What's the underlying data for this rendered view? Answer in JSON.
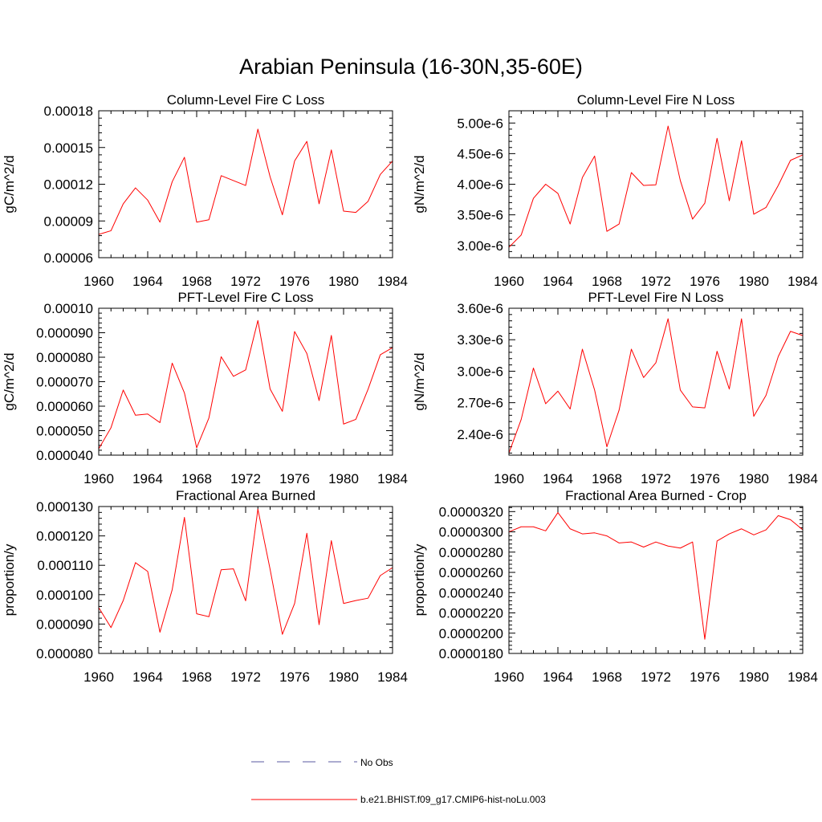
{
  "title": "Arabian Peninsula (16-30N,35-60E)",
  "legend": [
    {
      "label": "No Obs",
      "color": "#5a5aa0",
      "style": "dashed"
    },
    {
      "label": "b.e21.BHIST.f09_g17.CMIP6-hist-noLu.003",
      "color": "#ff0000",
      "style": "solid"
    }
  ],
  "chart_data": [
    {
      "type": "line",
      "title": "Column-Level Fire C Loss",
      "ylabel": "gC/m^2/d",
      "xlim": [
        1960,
        1984
      ],
      "xticks": [
        "1960",
        "1964",
        "1968",
        "1972",
        "1976",
        "1980",
        "1984"
      ],
      "ylim": [
        6e-05,
        0.00018
      ],
      "yticks": [
        "0.00006",
        "0.00009",
        "0.00012",
        "0.00015",
        "0.00018"
      ],
      "x": [
        1960,
        1961,
        1962,
        1963,
        1964,
        1965,
        1966,
        1967,
        1968,
        1969,
        1970,
        1971,
        1972,
        1973,
        1974,
        1975,
        1976,
        1977,
        1978,
        1979,
        1980,
        1981,
        1982,
        1983,
        1984
      ],
      "series": [
        {
          "color": "#ff0000",
          "values": [
            7.9e-05,
            8.2e-05,
            0.000104,
            0.000117,
            0.000107,
            8.9e-05,
            0.000122,
            0.000142,
            8.9e-05,
            9.1e-05,
            0.000127,
            0.000123,
            0.000119,
            0.000165,
            0.000126,
            9.5e-05,
            0.000139,
            0.000155,
            0.000104,
            0.000148,
            9.8e-05,
            9.7e-05,
            0.000106,
            0.000128,
            0.000139
          ]
        }
      ]
    },
    {
      "type": "line",
      "title": "Column-Level Fire N Loss",
      "ylabel": "gN/m^2/d",
      "xlim": [
        1960,
        1984
      ],
      "xticks": [
        "1960",
        "1964",
        "1968",
        "1972",
        "1976",
        "1980",
        "1984"
      ],
      "ylim": [
        2.8e-06,
        5.2e-06
      ],
      "yticks": [
        "3.00e-6",
        "3.50e-6",
        "4.00e-6",
        "4.50e-6",
        "5.00e-6"
      ],
      "ytick_values": [
        3e-06,
        3.5e-06,
        4e-06,
        4.5e-06,
        5e-06
      ],
      "x": [
        1960,
        1961,
        1962,
        1963,
        1964,
        1965,
        1966,
        1967,
        1968,
        1969,
        1970,
        1971,
        1972,
        1973,
        1974,
        1975,
        1976,
        1977,
        1978,
        1979,
        1980,
        1981,
        1982,
        1983,
        1984
      ],
      "series": [
        {
          "color": "#ff0000",
          "values": [
            2.97e-06,
            3.17e-06,
            3.77e-06,
            4e-06,
            3.85e-06,
            3.35e-06,
            4.11e-06,
            4.46e-06,
            3.23e-06,
            3.35e-06,
            4.19e-06,
            3.98e-06,
            3.99e-06,
            4.95e-06,
            4.06e-06,
            3.43e-06,
            3.69e-06,
            4.75e-06,
            3.73e-06,
            4.71e-06,
            3.51e-06,
            3.62e-06,
            3.98e-06,
            4.39e-06,
            4.48e-06
          ]
        }
      ]
    },
    {
      "type": "line",
      "title": "PFT-Level Fire C Loss",
      "ylabel": "gC/m^2/d",
      "xlim": [
        1960,
        1984
      ],
      "xticks": [
        "1960",
        "1964",
        "1968",
        "1972",
        "1976",
        "1980",
        "1984"
      ],
      "ylim": [
        4e-05,
        0.0001
      ],
      "yticks": [
        "0.000040",
        "0.000050",
        "0.000060",
        "0.000070",
        "0.000080",
        "0.000090",
        "0.00010"
      ],
      "x": [
        1960,
        1961,
        1962,
        1963,
        1964,
        1965,
        1966,
        1967,
        1968,
        1969,
        1970,
        1971,
        1972,
        1973,
        1974,
        1975,
        1976,
        1977,
        1978,
        1979,
        1980,
        1981,
        1982,
        1983,
        1984
      ],
      "series": [
        {
          "color": "#ff0000",
          "values": [
            4.26e-05,
            5.12e-05,
            6.66e-05,
            5.63e-05,
            5.68e-05,
            5.33e-05,
            7.76e-05,
            6.54e-05,
            4.3e-05,
            5.52e-05,
            8.02e-05,
            7.22e-05,
            7.48e-05,
            9.5e-05,
            6.7e-05,
            5.79e-05,
            9.05e-05,
            8.15e-05,
            6.23e-05,
            8.89e-05,
            5.27e-05,
            5.46e-05,
            6.69e-05,
            8.1e-05,
            8.39e-05
          ]
        }
      ]
    },
    {
      "type": "line",
      "title": "PFT-Level Fire N Loss",
      "ylabel": "gN/m^2/d",
      "xlim": [
        1960,
        1984
      ],
      "xticks": [
        "1960",
        "1964",
        "1968",
        "1972",
        "1976",
        "1980",
        "1984"
      ],
      "ylim": [
        2.2e-06,
        3.6e-06
      ],
      "yticks": [
        "2.40e-6",
        "2.70e-6",
        "3.00e-6",
        "3.30e-6",
        "3.60e-6"
      ],
      "ytick_values": [
        2.4e-06,
        2.7e-06,
        3e-06,
        3.3e-06,
        3.6e-06
      ],
      "x": [
        1960,
        1961,
        1962,
        1963,
        1964,
        1965,
        1966,
        1967,
        1968,
        1969,
        1970,
        1971,
        1972,
        1973,
        1974,
        1975,
        1976,
        1977,
        1978,
        1979,
        1980,
        1981,
        1982,
        1983,
        1984
      ],
      "series": [
        {
          "color": "#ff0000",
          "values": [
            2.22e-06,
            2.54e-06,
            3.03e-06,
            2.69e-06,
            2.81e-06,
            2.64e-06,
            3.21e-06,
            2.82e-06,
            2.28e-06,
            2.63e-06,
            3.21e-06,
            2.94e-06,
            3.08e-06,
            3.5e-06,
            2.82e-06,
            2.66e-06,
            2.65e-06,
            3.19e-06,
            2.83e-06,
            3.5e-06,
            2.57e-06,
            2.77e-06,
            3.14e-06,
            3.38e-06,
            3.34e-06
          ]
        }
      ]
    },
    {
      "type": "line",
      "title": "Fractional Area Burned",
      "ylabel": "proportion/y",
      "xlim": [
        1960,
        1984
      ],
      "xticks": [
        "1960",
        "1964",
        "1968",
        "1972",
        "1976",
        "1980",
        "1984"
      ],
      "ylim": [
        8e-05,
        0.00013
      ],
      "yticks": [
        "0.000080",
        "0.000090",
        "0.000100",
        "0.000110",
        "0.000120",
        "0.000130"
      ],
      "x": [
        1960,
        1961,
        1962,
        1963,
        1964,
        1965,
        1966,
        1967,
        1968,
        1969,
        1970,
        1971,
        1972,
        1973,
        1974,
        1975,
        1976,
        1977,
        1978,
        1979,
        1980,
        1981,
        1982,
        1983,
        1984
      ],
      "series": [
        {
          "color": "#ff0000",
          "values": [
            9.56e-05,
            8.88e-05,
            9.8e-05,
            0.0001109,
            0.0001079,
            8.72e-05,
            0.0001017,
            0.0001263,
            9.35e-05,
            9.25e-05,
            0.0001085,
            0.0001088,
            9.79e-05,
            0.0001291,
            0.0001086,
            8.65e-05,
            9.7e-05,
            0.0001209,
            8.98e-05,
            0.0001184,
            9.7e-05,
            9.8e-05,
            9.88e-05,
            0.0001065,
            0.0001092
          ]
        }
      ]
    },
    {
      "type": "line",
      "title": "Fractional Area Burned - Crop",
      "ylabel": "proportion/y",
      "xlim": [
        1960,
        1984
      ],
      "xticks": [
        "1960",
        "1964",
        "1968",
        "1972",
        "1976",
        "1980",
        "1984"
      ],
      "ylim": [
        1.8e-05,
        3.25e-05
      ],
      "yticks": [
        "0.0000180",
        "0.0000200",
        "0.0000220",
        "0.0000240",
        "0.0000260",
        "0.0000280",
        "0.0000300",
        "0.0000320"
      ],
      "ytick_values": [
        1.8e-05,
        2e-05,
        2.2e-05,
        2.4e-05,
        2.6e-05,
        2.8e-05,
        3e-05,
        3.2e-05
      ],
      "x": [
        1960,
        1961,
        1962,
        1963,
        1964,
        1965,
        1966,
        1967,
        1968,
        1969,
        1970,
        1971,
        1972,
        1973,
        1974,
        1975,
        1976,
        1977,
        1978,
        1979,
        1980,
        1981,
        1982,
        1983,
        1984
      ],
      "series": [
        {
          "color": "#ff0000",
          "values": [
            3e-05,
            3.05e-05,
            3.05e-05,
            3.01e-05,
            3.19e-05,
            3.03e-05,
            2.98e-05,
            2.99e-05,
            2.96e-05,
            2.89e-05,
            2.9e-05,
            2.85e-05,
            2.9e-05,
            2.86e-05,
            2.84e-05,
            2.9e-05,
            1.94e-05,
            2.91e-05,
            2.98e-05,
            3.03e-05,
            2.97e-05,
            3.02e-05,
            3.16e-05,
            3.12e-05,
            3.02e-05
          ]
        }
      ]
    }
  ]
}
